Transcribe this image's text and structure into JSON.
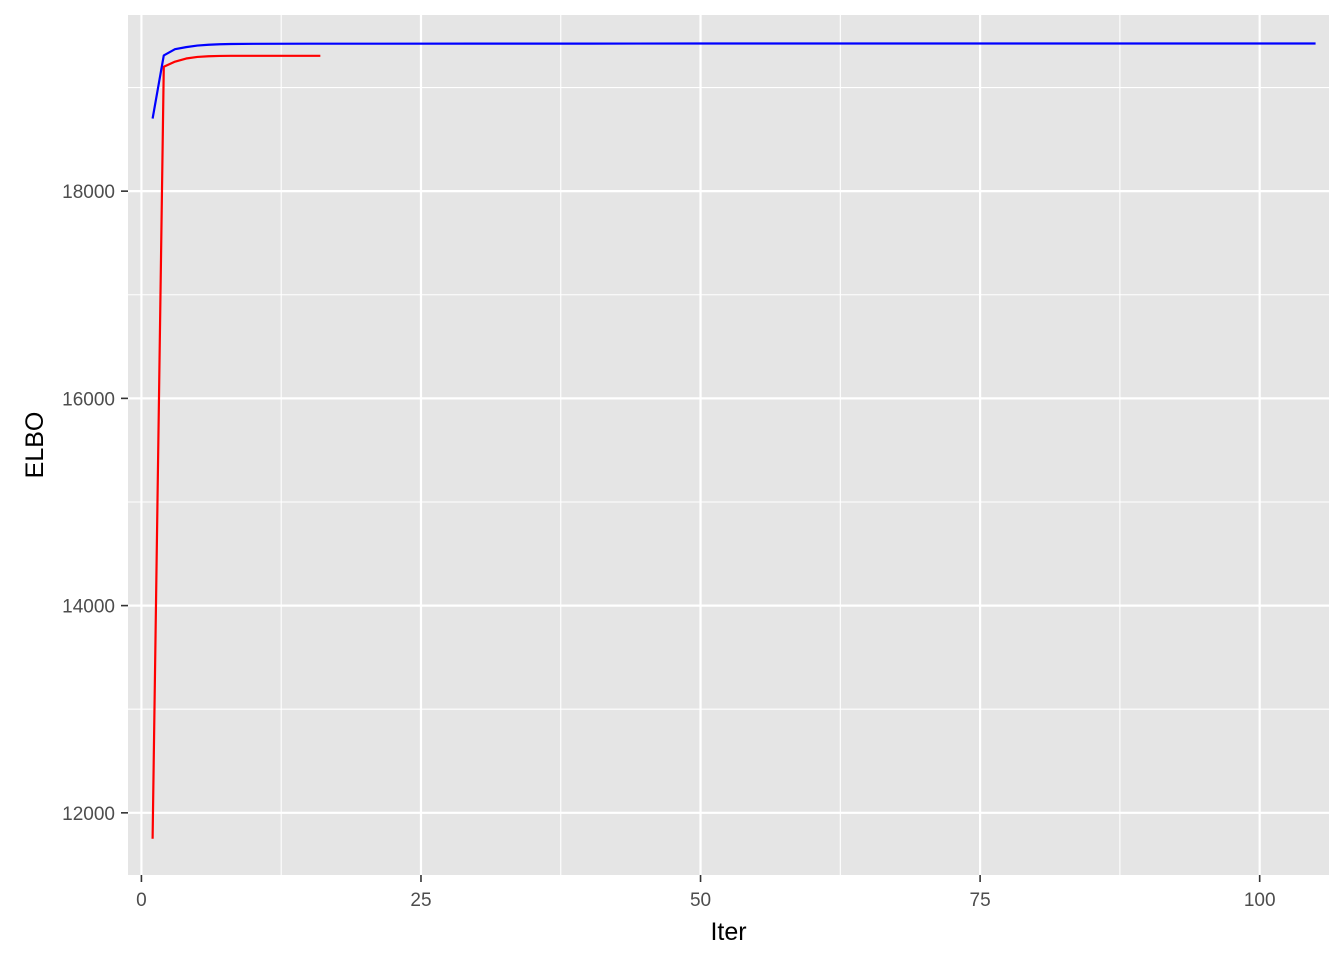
{
  "chart_data": {
    "type": "line",
    "title": "",
    "xlabel": "Iter",
    "ylabel": "ELBO",
    "xlim": [
      -1.2,
      106.2
    ],
    "ylim": [
      11400,
      19700
    ],
    "x_ticks": [
      0,
      25,
      50,
      75,
      100
    ],
    "x_tick_labels": [
      "0",
      "25",
      "50",
      "75",
      "100"
    ],
    "y_ticks": [
      12000,
      14000,
      16000,
      18000
    ],
    "y_tick_labels": [
      "12000",
      "14000",
      "16000",
      "18000"
    ],
    "grid": true,
    "legend": "none",
    "background_color": "#e5e5e5",
    "grid_color": "#ffffff",
    "series": [
      {
        "color": "#ff0000",
        "x": [
          1,
          2,
          3,
          4,
          5,
          6,
          7,
          8,
          9,
          10,
          11,
          12,
          13,
          14,
          15,
          16
        ],
        "y": [
          11750,
          19200,
          19250,
          19280,
          19295,
          19302,
          19305,
          19306,
          19306,
          19306,
          19306,
          19306,
          19306,
          19306,
          19306,
          19306
        ]
      },
      {
        "color": "#0000ff",
        "x": [
          1,
          2,
          3,
          4,
          5,
          6,
          7,
          8,
          10,
          15,
          20,
          30,
          40,
          50,
          60,
          70,
          80,
          90,
          100,
          105
        ],
        "y": [
          18700,
          19310,
          19370,
          19390,
          19405,
          19413,
          19418,
          19420,
          19422,
          19423,
          19423,
          19424,
          19424,
          19425,
          19425,
          19425,
          19425,
          19425,
          19425,
          19425
        ]
      }
    ]
  }
}
